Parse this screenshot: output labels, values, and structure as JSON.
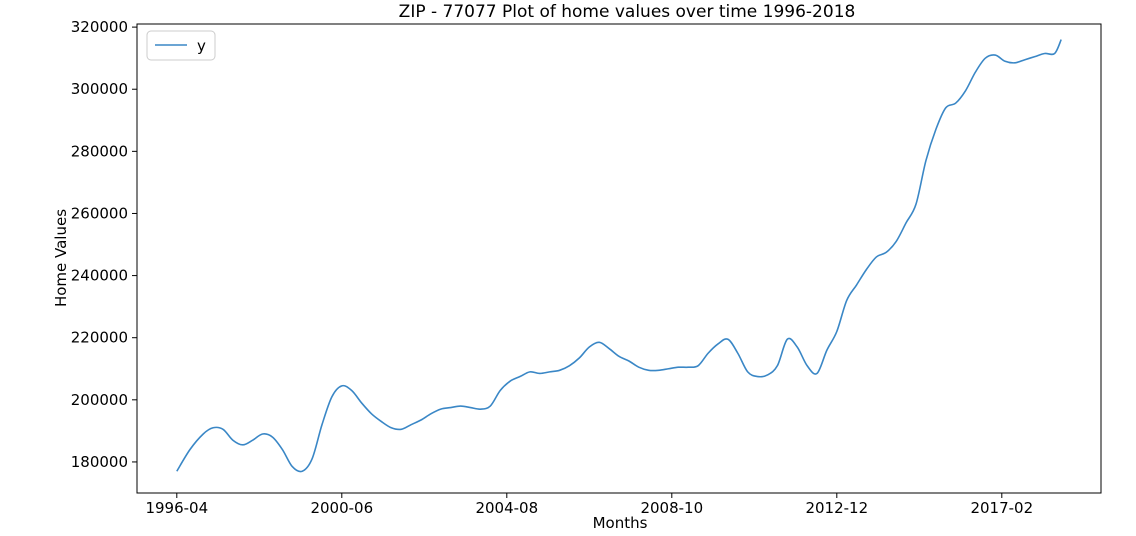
{
  "chart_data": {
    "type": "line",
    "title": "ZIP - 77077 Plot of home values over time 1996-2018",
    "xlabel": "Months",
    "ylabel": "Home Values",
    "x_ticks": [
      "1996-04",
      "2000-06",
      "2004-08",
      "2008-10",
      "2012-12",
      "2017-02"
    ],
    "y_ticks": [
      180000,
      200000,
      220000,
      240000,
      260000,
      280000,
      300000,
      320000
    ],
    "ylim": [
      170000,
      321000
    ],
    "legend": "upper-left",
    "grid": false,
    "series": [
      {
        "name": "y",
        "color": "#3a87c6",
        "points": [
          [
            "1996-04",
            177000
          ],
          [
            "1996-08",
            184000
          ],
          [
            "1996-12",
            189000
          ],
          [
            "1997-03",
            191000
          ],
          [
            "1997-06",
            190500
          ],
          [
            "1997-09",
            187000
          ],
          [
            "1997-12",
            185500
          ],
          [
            "1998-03",
            187000
          ],
          [
            "1998-06",
            189000
          ],
          [
            "1998-09",
            188000
          ],
          [
            "1998-12",
            184000
          ],
          [
            "1999-03",
            178500
          ],
          [
            "1999-06",
            177000
          ],
          [
            "1999-09",
            181000
          ],
          [
            "1999-12",
            192000
          ],
          [
            "2000-03",
            201000
          ],
          [
            "2000-06",
            204500
          ],
          [
            "2000-09",
            203000
          ],
          [
            "2000-12",
            199000
          ],
          [
            "2001-03",
            195500
          ],
          [
            "2001-06",
            193000
          ],
          [
            "2001-09",
            191000
          ],
          [
            "2001-12",
            190500
          ],
          [
            "2002-03",
            192000
          ],
          [
            "2002-06",
            193500
          ],
          [
            "2002-09",
            195500
          ],
          [
            "2002-12",
            197000
          ],
          [
            "2003-03",
            197500
          ],
          [
            "2003-06",
            198000
          ],
          [
            "2003-09",
            197500
          ],
          [
            "2003-12",
            197000
          ],
          [
            "2004-03",
            198000
          ],
          [
            "2004-06",
            203000
          ],
          [
            "2004-09",
            206000
          ],
          [
            "2004-12",
            207500
          ],
          [
            "2005-03",
            209000
          ],
          [
            "2005-06",
            208500
          ],
          [
            "2005-09",
            209000
          ],
          [
            "2005-12",
            209500
          ],
          [
            "2006-03",
            211000
          ],
          [
            "2006-06",
            213500
          ],
          [
            "2006-09",
            217000
          ],
          [
            "2006-12",
            218500
          ],
          [
            "2007-03",
            216500
          ],
          [
            "2007-06",
            214000
          ],
          [
            "2007-09",
            212500
          ],
          [
            "2007-12",
            210500
          ],
          [
            "2008-03",
            209500
          ],
          [
            "2008-06",
            209500
          ],
          [
            "2008-09",
            210000
          ],
          [
            "2008-12",
            210500
          ],
          [
            "2009-03",
            210500
          ],
          [
            "2009-06",
            211000
          ],
          [
            "2009-09",
            215000
          ],
          [
            "2009-12",
            218000
          ],
          [
            "2010-03",
            219500
          ],
          [
            "2010-06",
            215000
          ],
          [
            "2010-09",
            209000
          ],
          [
            "2010-12",
            207500
          ],
          [
            "2011-03",
            208000
          ],
          [
            "2011-06",
            211000
          ],
          [
            "2011-09",
            219500
          ],
          [
            "2011-12",
            217000
          ],
          [
            "2012-03",
            211000
          ],
          [
            "2012-06",
            208500
          ],
          [
            "2012-09",
            216000
          ],
          [
            "2012-12",
            222000
          ],
          [
            "2013-03",
            232000
          ],
          [
            "2013-06",
            237000
          ],
          [
            "2013-09",
            242000
          ],
          [
            "2013-12",
            246000
          ],
          [
            "2014-03",
            247500
          ],
          [
            "2014-06",
            251000
          ],
          [
            "2014-09",
            257000
          ],
          [
            "2014-12",
            263000
          ],
          [
            "2015-03",
            277000
          ],
          [
            "2015-06",
            287000
          ],
          [
            "2015-09",
            294000
          ],
          [
            "2015-12",
            295500
          ],
          [
            "2016-03",
            299500
          ],
          [
            "2016-06",
            305500
          ],
          [
            "2016-09",
            310000
          ],
          [
            "2016-12",
            311000
          ],
          [
            "2017-03",
            309000
          ],
          [
            "2017-06",
            308500
          ],
          [
            "2017-09",
            309500
          ],
          [
            "2017-12",
            310500
          ],
          [
            "2018-03",
            311500
          ],
          [
            "2018-06",
            311500
          ],
          [
            "2018-08",
            316000
          ]
        ]
      }
    ]
  }
}
